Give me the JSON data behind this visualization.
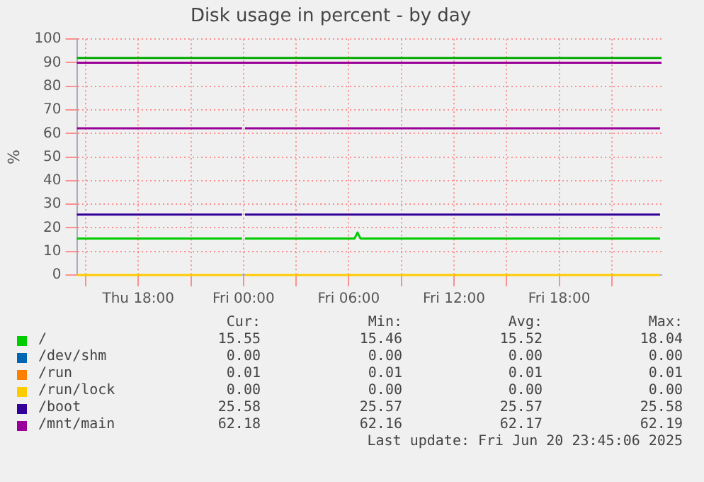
{
  "chart_data": {
    "type": "line",
    "title": "Disk usage in percent - by day",
    "ylabel": "%",
    "x": [
      "2025-06-19T14:30",
      "2025-06-19T23:55",
      "2025-06-20T00:00",
      "2025-06-20T00:05",
      "2025-06-20T06:20",
      "2025-06-20T06:30",
      "2025-06-20T06:40",
      "2025-06-20T23:45"
    ],
    "xlim": [
      "2025-06-19T14:30",
      "2025-06-20T23:50"
    ],
    "xticks": [
      {
        "value": "2025-06-19T15:00",
        "label": null
      },
      {
        "value": "2025-06-19T18:00",
        "label": "Thu 18:00"
      },
      {
        "value": "2025-06-19T21:00",
        "label": null
      },
      {
        "value": "2025-06-20T00:00",
        "label": "Fri 00:00"
      },
      {
        "value": "2025-06-20T03:00",
        "label": null
      },
      {
        "value": "2025-06-20T06:00",
        "label": "Fri 06:00"
      },
      {
        "value": "2025-06-20T09:00",
        "label": null
      },
      {
        "value": "2025-06-20T12:00",
        "label": "Fri 12:00"
      },
      {
        "value": "2025-06-20T15:00",
        "label": null
      },
      {
        "value": "2025-06-20T18:00",
        "label": "Fri 18:00"
      },
      {
        "value": "2025-06-20T21:00",
        "label": null
      }
    ],
    "ylim": [
      0,
      100
    ],
    "yticks": [
      0,
      10,
      20,
      30,
      40,
      50,
      60,
      70,
      80,
      90,
      100
    ],
    "grid": true,
    "legend": "bottom",
    "marker": "none",
    "line_style": "solid",
    "series": [
      {
        "name": "/",
        "color": "#00cc00",
        "values": [
          15.5,
          15.5,
          null,
          15.5,
          15.5,
          18,
          15.5,
          15.5
        ]
      },
      {
        "name": "/dev/shm",
        "color": "#0066b3",
        "values": [
          null,
          null,
          null,
          null,
          null,
          null,
          null,
          null
        ]
      },
      {
        "name": "/run",
        "color": "#ff8000",
        "values": [
          null,
          null,
          null,
          null,
          null,
          null,
          null,
          null
        ]
      },
      {
        "name": "/run/lock",
        "color": "#ffcc00",
        "values": [
          0,
          0,
          null,
          0,
          0,
          0,
          0,
          0
        ]
      },
      {
        "name": "/boot",
        "color": "#330099",
        "values": [
          25.6,
          25.6,
          null,
          25.6,
          25.6,
          25.6,
          25.6,
          25.6
        ]
      },
      {
        "name": "/mnt/main",
        "color": "#990099",
        "values": [
          62.2,
          62.2,
          null,
          62.2,
          62.2,
          62.2,
          62.2,
          62.2
        ]
      }
    ],
    "ref_lines": [
      {
        "axis": "y",
        "value": 92,
        "color": "#00aa00",
        "line_style": "solid"
      },
      {
        "axis": "y",
        "value": 90,
        "color": "#990099",
        "line_style": "solid"
      }
    ],
    "annotations": [
      "Cur:",
      "Min:",
      "Avg:",
      "Max:",
      "15.55",
      "15.46",
      "15.52",
      "18.04",
      "0.00",
      "0.00",
      "0.00",
      "0.00",
      "0.01",
      "0.01",
      "0.01",
      "0.01",
      "0.00",
      "0.00",
      "0.00",
      "0.00",
      "25.58",
      "25.57",
      "25.57",
      "25.58",
      "62.18",
      "62.16",
      "62.17",
      "62.19",
      "Last update: Fri Jun 20 23:45:06 2025"
    ]
  }
}
